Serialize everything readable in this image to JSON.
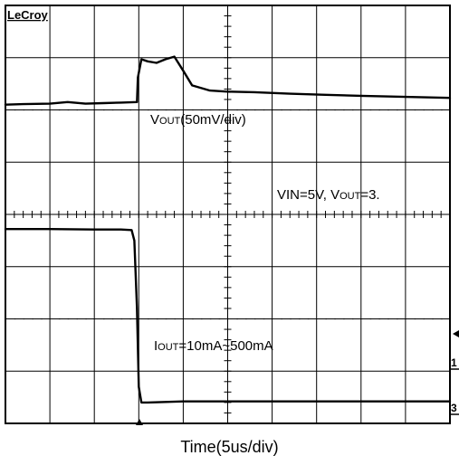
{
  "chart_data": {
    "type": "line",
    "brand": "LeCroy",
    "xlabel": "Time(5us/div)",
    "annotations": {
      "vout_label": "VOUT(50mV/div)",
      "condition": "VIN=5V, VOUT=3.",
      "iout_label": "IOUT=10mA~500mA"
    },
    "channel_markers": [
      "1",
      "3"
    ],
    "grid": true,
    "x_divisions": 10,
    "y_divisions": 8,
    "xlim": [
      0,
      50
    ],
    "series": [
      {
        "name": "VOUT",
        "units": "div",
        "x": [
          0,
          2,
          5,
          7,
          9,
          11,
          13,
          14.8,
          14.9,
          15.3,
          16,
          17,
          18,
          19,
          20,
          21,
          23,
          25,
          28,
          32,
          36,
          40,
          45,
          50
        ],
        "y": [
          6.1,
          6.11,
          6.12,
          6.15,
          6.12,
          6.13,
          6.14,
          6.15,
          6.62,
          6.97,
          6.93,
          6.9,
          6.97,
          7.02,
          6.75,
          6.47,
          6.37,
          6.35,
          6.34,
          6.31,
          6.29,
          6.27,
          6.25,
          6.23
        ]
      },
      {
        "name": "IOUT",
        "units": "div",
        "x": [
          0,
          5,
          10,
          13,
          14.2,
          14.5,
          14.8,
          15.0,
          15.3,
          16,
          18,
          20,
          25,
          30,
          35,
          40,
          45,
          50
        ],
        "y": [
          3.72,
          3.72,
          3.71,
          3.71,
          3.7,
          3.5,
          2.2,
          0.7,
          0.4,
          0.4,
          0.41,
          0.42,
          0.42,
          0.42,
          0.42,
          0.42,
          0.42,
          0.42
        ]
      }
    ]
  }
}
